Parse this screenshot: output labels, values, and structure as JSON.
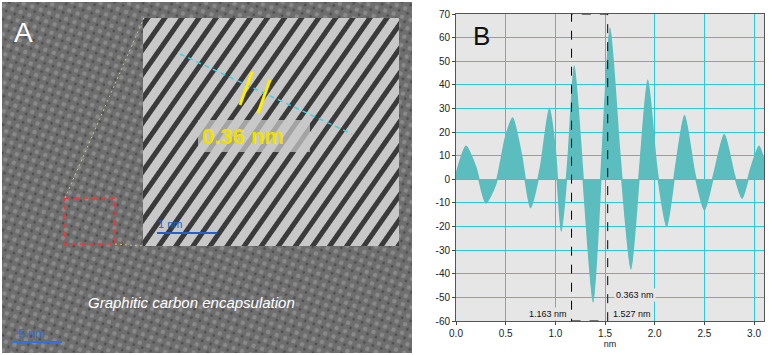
{
  "panel_a": {
    "label": "A",
    "inset_label": "0.36 nm",
    "inset_scale": "1 nm",
    "caption": "Graphitic carbon encapsulation",
    "scale": "5 nm"
  },
  "chart_data": {
    "type": "area",
    "panel_label": "B",
    "x_label": "nm",
    "color": "#5bbdbd",
    "x": [
      0.0,
      0.1,
      0.2,
      0.3,
      0.4,
      0.5,
      0.57,
      0.66,
      0.75,
      0.85,
      0.94,
      1.0,
      1.06,
      1.13,
      1.19,
      1.28,
      1.38,
      1.47,
      1.55,
      1.65,
      1.76,
      1.85,
      1.93,
      2.02,
      2.12,
      2.21,
      2.3,
      2.4,
      2.5,
      2.6,
      2.7,
      2.8,
      2.88,
      2.97,
      3.05,
      3.1
    ],
    "values": [
      2,
      14,
      5,
      -10,
      -2,
      18,
      26,
      10,
      -12,
      5,
      30,
      12,
      -22,
      10,
      48,
      0,
      -52,
      10,
      64,
      10,
      -38,
      5,
      42,
      5,
      -20,
      5,
      27,
      3,
      -13,
      3,
      19,
      2,
      -8,
      5,
      14,
      8
    ],
    "xlim": [
      0,
      3.1
    ],
    "xticks": [
      {
        "value": 0,
        "label": "0.0"
      },
      0.5,
      {
        "value": 1,
        "label": "1.0"
      },
      1.5,
      {
        "value": 2,
        "label": "2.0"
      },
      2.5,
      {
        "value": 3,
        "label": "3.0"
      }
    ],
    "ylim": [
      -60,
      70
    ],
    "yticks": [
      -60,
      -50,
      -40,
      -30,
      -20,
      -10,
      0,
      10,
      20,
      30,
      40,
      50,
      60,
      70
    ],
    "grid": true,
    "cursors": [
      {
        "x": 1.163,
        "label": "1.163 nm"
      },
      {
        "x": 1.527,
        "label": "1.527 nm"
      }
    ],
    "annotations": [
      {
        "text": "0.363 nm"
      }
    ]
  }
}
